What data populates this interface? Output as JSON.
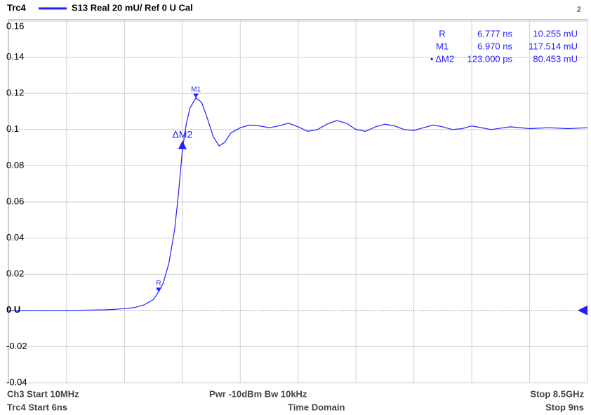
{
  "header": {
    "trace": "Trc4",
    "settings": "S13  Real  20 mU/ Ref 0 U  Cal",
    "window": "2"
  },
  "chart_data": {
    "type": "line",
    "xlim": [
      6,
      9
    ],
    "xticks": [
      6,
      6.3,
      6.6,
      6.9,
      7.2,
      7.5,
      7.8,
      8.1,
      8.4,
      8.7,
      9
    ],
    "ylim": [
      -0.04,
      0.16
    ],
    "yticks": [
      -0.04,
      -0.02,
      {
        "value": 0,
        "label": "0 U"
      },
      0.02,
      0.04,
      0.06,
      0.08,
      0.1,
      0.12,
      0.14,
      0.16
    ],
    "grid": true,
    "series": [
      {
        "name": "Trc4",
        "color": "#1f1fff",
        "x": [
          6.0,
          6.3,
          6.5,
          6.55,
          6.6,
          6.65,
          6.7,
          6.75,
          6.777,
          6.8,
          6.83,
          6.86,
          6.88,
          6.9,
          6.92,
          6.94,
          6.97,
          7.0,
          7.03,
          7.06,
          7.09,
          7.12,
          7.15,
          7.2,
          7.25,
          7.3,
          7.35,
          7.4,
          7.45,
          7.5,
          7.55,
          7.6,
          7.65,
          7.7,
          7.75,
          7.8,
          7.85,
          7.9,
          7.95,
          8.0,
          8.05,
          8.1,
          8.15,
          8.2,
          8.25,
          8.3,
          8.35,
          8.4,
          8.5,
          8.6,
          8.7,
          8.8,
          8.9,
          9.0
        ],
        "values": [
          0,
          0,
          0.0003,
          0.0006,
          0.001,
          0.0015,
          0.003,
          0.006,
          0.0103,
          0.015,
          0.026,
          0.045,
          0.065,
          0.089,
          0.103,
          0.112,
          0.1175,
          0.115,
          0.106,
          0.096,
          0.091,
          0.093,
          0.098,
          0.101,
          0.1025,
          0.102,
          0.101,
          0.102,
          0.1035,
          0.1015,
          0.099,
          0.1,
          0.103,
          0.105,
          0.1035,
          0.1,
          0.099,
          0.1015,
          0.103,
          0.102,
          0.1,
          0.0995,
          0.101,
          0.1025,
          0.1015,
          0.1,
          0.1005,
          0.102,
          0.1,
          0.1015,
          0.1005,
          0.101,
          0.1005,
          0.101
        ]
      }
    ],
    "markers": [
      {
        "name": "R",
        "x": 6.777,
        "y": 0.010255
      },
      {
        "name": "M1",
        "x": 6.97,
        "y": 0.117514
      },
      {
        "name": "ΔM2",
        "x": 6.9,
        "y": 0.0907
      }
    ]
  },
  "marker_table": [
    [
      "R",
      "6.777 ns",
      "10.255 mU"
    ],
    [
      "M1",
      "6.970 ns",
      "117.514 mU"
    ],
    [
      "• ΔM2",
      "123.000 ps",
      "80.453 mU"
    ]
  ],
  "footer": {
    "ch_start": "Ch3  Start  10MHz",
    "power": "Pwr  -10dBm  Bw  10kHz",
    "ch_stop": "Stop 8.5GHz",
    "trc_start": "Trc4  Start  6ns",
    "domain": "Time Domain",
    "trc_stop": "Stop 9ns"
  }
}
